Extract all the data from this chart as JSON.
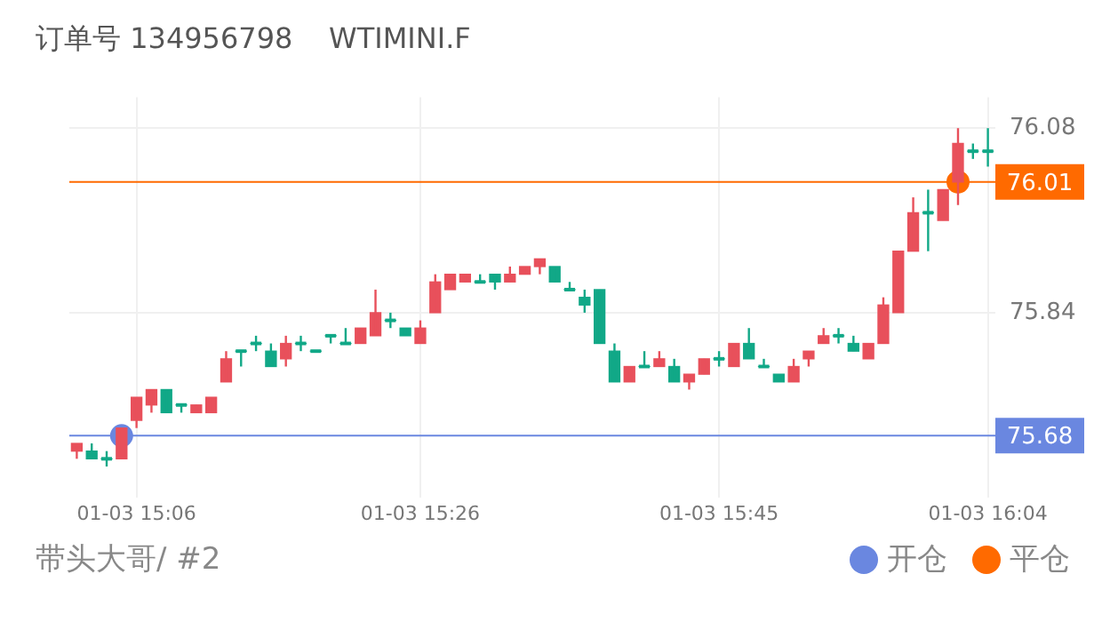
{
  "chart_data": {
    "type": "candlestick",
    "title": "订单号 134956798    WTIMINI.F",
    "categories": [
      null,
      null,
      null,
      null,
      "01-03 15:06",
      null,
      null,
      null,
      null,
      null,
      null,
      null,
      null,
      null,
      null,
      null,
      null,
      null,
      null,
      null,
      null,
      null,
      null,
      "01-03 15:26",
      null,
      null,
      null,
      null,
      null,
      null,
      null,
      null,
      null,
      null,
      null,
      null,
      null,
      null,
      null,
      null,
      null,
      null,
      null,
      "01-03 15:45",
      null,
      null,
      null,
      null,
      null,
      null,
      null,
      null,
      null,
      null,
      null,
      null,
      null,
      null,
      null,
      null,
      null,
      "01-03 16:04"
    ],
    "ohlc": [
      [
        75.66,
        75.67,
        75.65,
        75.67
      ],
      [
        75.66,
        75.67,
        75.65,
        75.65
      ],
      [
        75.65,
        75.66,
        75.64,
        75.65
      ],
      [
        75.65,
        75.69,
        75.65,
        75.69
      ],
      [
        75.7,
        75.73,
        75.69,
        75.73
      ],
      [
        75.72,
        75.74,
        75.71,
        75.74
      ],
      [
        75.74,
        75.74,
        75.71,
        75.71
      ],
      [
        75.72,
        75.72,
        75.71,
        75.72
      ],
      [
        75.71,
        75.72,
        75.71,
        75.72
      ],
      [
        75.71,
        75.73,
        75.71,
        75.73
      ],
      [
        75.75,
        75.79,
        75.75,
        75.78
      ],
      [
        75.79,
        75.79,
        75.77,
        75.79
      ],
      [
        75.8,
        75.81,
        75.79,
        75.8
      ],
      [
        75.79,
        75.8,
        75.77,
        75.77
      ],
      [
        75.78,
        75.81,
        75.77,
        75.8
      ],
      [
        75.8,
        75.81,
        75.79,
        75.8
      ],
      [
        75.79,
        75.79,
        75.79,
        75.79
      ],
      [
        75.81,
        75.81,
        75.8,
        75.81
      ],
      [
        75.8,
        75.82,
        75.8,
        75.8
      ],
      [
        75.8,
        75.82,
        75.8,
        75.82
      ],
      [
        75.81,
        75.87,
        75.81,
        75.84
      ],
      [
        75.83,
        75.84,
        75.82,
        75.83
      ],
      [
        75.82,
        75.82,
        75.81,
        75.81
      ],
      [
        75.8,
        75.83,
        75.8,
        75.82
      ],
      [
        75.84,
        75.89,
        75.84,
        75.88
      ],
      [
        75.87,
        75.89,
        75.87,
        75.89
      ],
      [
        75.88,
        75.89,
        75.88,
        75.89
      ],
      [
        75.88,
        75.89,
        75.88,
        75.88
      ],
      [
        75.89,
        75.89,
        75.87,
        75.88
      ],
      [
        75.88,
        75.9,
        75.88,
        75.89
      ],
      [
        75.89,
        75.9,
        75.89,
        75.9
      ],
      [
        75.9,
        75.91,
        75.89,
        75.91
      ],
      [
        75.9,
        75.9,
        75.88,
        75.88
      ],
      [
        75.87,
        75.88,
        75.87,
        75.87
      ],
      [
        75.86,
        75.87,
        75.84,
        75.85
      ],
      [
        75.87,
        75.87,
        75.8,
        75.8
      ],
      [
        75.79,
        75.8,
        75.75,
        75.75
      ],
      [
        75.75,
        75.77,
        75.75,
        75.77
      ],
      [
        75.77,
        75.79,
        75.77,
        75.77
      ],
      [
        75.77,
        75.79,
        75.77,
        75.78
      ],
      [
        75.77,
        75.78,
        75.75,
        75.75
      ],
      [
        75.75,
        75.76,
        75.74,
        75.76
      ],
      [
        75.76,
        75.78,
        75.76,
        75.78
      ],
      [
        75.78,
        75.79,
        75.77,
        75.78
      ],
      [
        75.77,
        75.8,
        75.77,
        75.8
      ],
      [
        75.8,
        75.82,
        75.78,
        75.78
      ],
      [
        75.77,
        75.78,
        75.77,
        75.77
      ],
      [
        75.76,
        75.76,
        75.75,
        75.75
      ],
      [
        75.75,
        75.78,
        75.75,
        75.77
      ],
      [
        75.78,
        75.79,
        75.77,
        75.79
      ],
      [
        75.8,
        75.82,
        75.8,
        75.81
      ],
      [
        75.81,
        75.82,
        75.8,
        75.81
      ],
      [
        75.8,
        75.81,
        75.79,
        75.79
      ],
      [
        75.78,
        75.8,
        75.78,
        75.8
      ],
      [
        75.8,
        75.86,
        75.8,
        75.85
      ],
      [
        75.84,
        75.92,
        75.84,
        75.92
      ],
      [
        75.92,
        75.99,
        75.92,
        75.97
      ],
      [
        75.97,
        76.0,
        75.92,
        75.97
      ],
      [
        75.96,
        76.0,
        75.96,
        76.0
      ],
      [
        76.01,
        76.08,
        75.98,
        76.06
      ],
      [
        76.05,
        76.06,
        76.04,
        76.05
      ],
      [
        76.05,
        76.08,
        76.03,
        76.05
      ]
    ],
    "colors": [
      "#e8505b",
      "#11a887",
      "#11a887",
      "#e8505b",
      "#e8505b",
      "#e8505b",
      "#11a887",
      "#11a887",
      "#e8505b",
      "#e8505b",
      "#e8505b",
      "#11a887",
      "#11a887",
      "#11a887",
      "#e8505b",
      "#11a887",
      "#11a887",
      "#11a887",
      "#11a887",
      "#e8505b",
      "#e8505b",
      "#11a887",
      "#11a887",
      "#e8505b",
      "#e8505b",
      "#e8505b",
      "#e8505b",
      "#11a887",
      "#11a887",
      "#e8505b",
      "#e8505b",
      "#e8505b",
      "#11a887",
      "#11a887",
      "#11a887",
      "#11a887",
      "#11a887",
      "#e8505b",
      "#11a887",
      "#e8505b",
      "#11a887",
      "#e8505b",
      "#e8505b",
      "#11a887",
      "#e8505b",
      "#11a887",
      "#11a887",
      "#11a887",
      "#e8505b",
      "#e8505b",
      "#e8505b",
      "#11a887",
      "#11a887",
      "#e8505b",
      "#e8505b",
      "#e8505b",
      "#e8505b",
      "#11a887",
      "#e8505b",
      "#e8505b",
      "#11a887",
      "#11a887"
    ],
    "series": [
      {
        "type": "scatter",
        "name": "开仓",
        "color": "#6a87e0",
        "values": [
          null,
          null,
          null,
          75.68,
          null,
          null,
          null,
          null,
          null,
          null,
          null,
          null,
          null,
          null,
          null,
          null,
          null,
          null,
          null,
          null,
          null,
          null,
          null,
          null,
          null,
          null,
          null,
          null,
          null,
          null,
          null,
          null,
          null,
          null,
          null,
          null,
          null,
          null,
          null,
          null,
          null,
          null,
          null,
          null,
          null,
          null,
          null,
          null,
          null,
          null,
          null,
          null,
          null,
          null,
          null,
          null,
          null,
          null,
          null,
          null,
          null,
          null
        ]
      },
      {
        "type": "scatter",
        "name": "平仓",
        "color": "#ff6a00",
        "values": [
          null,
          null,
          null,
          null,
          null,
          null,
          null,
          null,
          null,
          null,
          null,
          null,
          null,
          null,
          null,
          null,
          null,
          null,
          null,
          null,
          null,
          null,
          null,
          null,
          null,
          null,
          null,
          null,
          null,
          null,
          null,
          null,
          null,
          null,
          null,
          null,
          null,
          null,
          null,
          null,
          null,
          null,
          null,
          null,
          null,
          null,
          null,
          null,
          null,
          null,
          null,
          null,
          null,
          null,
          null,
          null,
          null,
          null,
          null,
          76.01,
          null,
          null
        ]
      }
    ],
    "ylim": [
      75.6,
      76.12
    ],
    "yticks": [
      75.84,
      76.08
    ],
    "ref_lines": [
      {
        "axis": "y",
        "value": 76.01,
        "label": "76.01",
        "color": "#ff6a00"
      },
      {
        "axis": "y",
        "value": 75.68,
        "label": "75.68",
        "color": "#6a87e0"
      }
    ],
    "annotations": [
      "带头大哥/ #2"
    ],
    "grid": true,
    "legend": "bottom right",
    "marker": "circle"
  }
}
